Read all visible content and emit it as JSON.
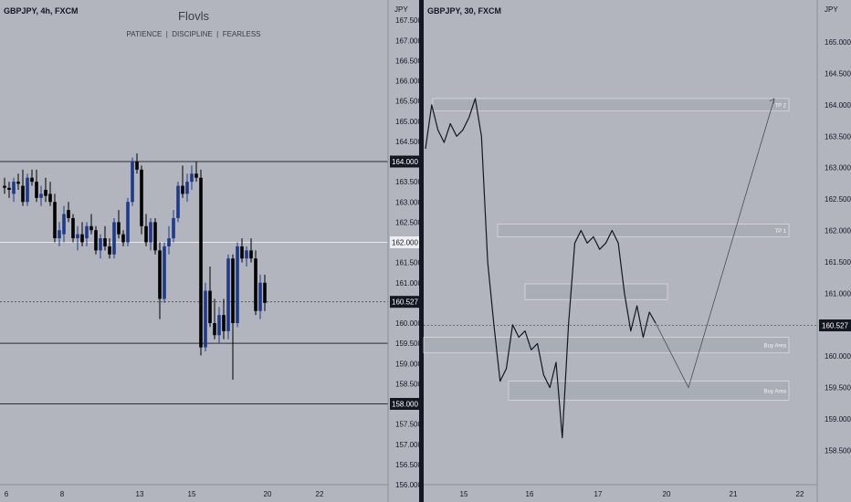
{
  "left_panel": {
    "symbol": "GBPJPY, 4h, FXCM",
    "brand": "Flovls",
    "tagline": "PATIENCE  |  DISCIPLINE  |  FEARLESS",
    "currency": "JPY",
    "price_badges": [
      "164.000",
      "162.000",
      "160.527",
      "158.000"
    ]
  },
  "right_panel": {
    "symbol": "GBPJPY, 30, FXCM",
    "currency": "JPY",
    "last_price": "160.527",
    "zone_labels": [
      "TP 2",
      "TP 1",
      "Buy Area",
      "Buy Area"
    ]
  },
  "colors": {
    "background": "#b2b5be",
    "bull_candle": "#1f3a8a",
    "bear_candle": "#000000",
    "separator": "#131722",
    "zone_fill": "#a3a6ae",
    "text": "#131722"
  },
  "chart_data": [
    {
      "type": "candlestick",
      "title": "GBPJPY, 4h, FXCM",
      "ylabel": "JPY",
      "ylim": [
        156.0,
        168.0
      ],
      "y_ticks": [
        "167.500",
        "167.000",
        "166.500",
        "166.000",
        "165.500",
        "165.000",
        "164.500",
        "164.000",
        "163.500",
        "163.000",
        "162.500",
        "162.000",
        "161.500",
        "161.000",
        "160.527",
        "160.000",
        "159.500",
        "159.000",
        "158.500",
        "158.000",
        "157.500",
        "157.000",
        "156.500",
        "156.000"
      ],
      "x_ticks": [
        "6",
        "8",
        "13",
        "15",
        "20",
        "22"
      ],
      "horizontal_levels": [
        164.0,
        162.0,
        160.527,
        159.5,
        158.0
      ],
      "candles": [
        {
          "o": 163.4,
          "h": 163.6,
          "l": 163.2,
          "c": 163.35
        },
        {
          "o": 163.35,
          "h": 163.5,
          "l": 163.1,
          "c": 163.3
        },
        {
          "o": 163.2,
          "h": 163.6,
          "l": 163.0,
          "c": 163.5
        },
        {
          "o": 163.5,
          "h": 163.7,
          "l": 163.3,
          "c": 163.45
        },
        {
          "o": 163.4,
          "h": 163.8,
          "l": 162.9,
          "c": 163.0
        },
        {
          "o": 163.0,
          "h": 163.7,
          "l": 162.9,
          "c": 163.6
        },
        {
          "o": 163.6,
          "h": 163.8,
          "l": 163.4,
          "c": 163.5
        },
        {
          "o": 163.5,
          "h": 163.8,
          "l": 163.0,
          "c": 163.1
        },
        {
          "o": 163.1,
          "h": 163.4,
          "l": 162.9,
          "c": 163.2
        },
        {
          "o": 163.3,
          "h": 163.6,
          "l": 163.0,
          "c": 163.15
        },
        {
          "o": 163.2,
          "h": 163.5,
          "l": 162.9,
          "c": 163.0
        },
        {
          "o": 163.0,
          "h": 163.2,
          "l": 162.0,
          "c": 162.1
        },
        {
          "o": 162.1,
          "h": 162.5,
          "l": 161.9,
          "c": 162.3
        },
        {
          "o": 162.2,
          "h": 162.9,
          "l": 162.0,
          "c": 162.7
        },
        {
          "o": 162.8,
          "h": 163.0,
          "l": 162.5,
          "c": 162.6
        },
        {
          "o": 162.6,
          "h": 162.7,
          "l": 162.0,
          "c": 162.1
        },
        {
          "o": 162.1,
          "h": 162.4,
          "l": 161.8,
          "c": 162.2
        },
        {
          "o": 162.2,
          "h": 162.5,
          "l": 161.9,
          "c": 162.0
        },
        {
          "o": 162.1,
          "h": 162.5,
          "l": 161.9,
          "c": 162.4
        },
        {
          "o": 162.4,
          "h": 162.7,
          "l": 162.2,
          "c": 162.3
        },
        {
          "o": 162.3,
          "h": 162.4,
          "l": 161.7,
          "c": 161.8
        },
        {
          "o": 161.8,
          "h": 162.2,
          "l": 161.6,
          "c": 162.1
        },
        {
          "o": 162.1,
          "h": 162.4,
          "l": 161.8,
          "c": 161.9
        },
        {
          "o": 161.9,
          "h": 162.1,
          "l": 161.6,
          "c": 161.7
        },
        {
          "o": 161.7,
          "h": 162.6,
          "l": 161.6,
          "c": 162.5
        },
        {
          "o": 162.5,
          "h": 162.8,
          "l": 162.1,
          "c": 162.2
        },
        {
          "o": 162.2,
          "h": 162.3,
          "l": 161.9,
          "c": 162.0
        },
        {
          "o": 162.0,
          "h": 163.1,
          "l": 161.9,
          "c": 163.0
        },
        {
          "o": 163.0,
          "h": 164.1,
          "l": 162.9,
          "c": 164.0
        },
        {
          "o": 164.0,
          "h": 164.2,
          "l": 163.7,
          "c": 163.8
        },
        {
          "o": 163.8,
          "h": 163.9,
          "l": 162.2,
          "c": 162.4
        },
        {
          "o": 162.4,
          "h": 162.7,
          "l": 161.9,
          "c": 162.0
        },
        {
          "o": 162.0,
          "h": 162.6,
          "l": 161.8,
          "c": 162.5
        },
        {
          "o": 162.5,
          "h": 162.6,
          "l": 161.7,
          "c": 161.8
        },
        {
          "o": 161.8,
          "h": 162.0,
          "l": 160.1,
          "c": 160.6
        },
        {
          "o": 160.6,
          "h": 162.0,
          "l": 160.5,
          "c": 161.9
        },
        {
          "o": 161.9,
          "h": 162.4,
          "l": 161.7,
          "c": 162.1
        },
        {
          "o": 162.1,
          "h": 162.8,
          "l": 162.0,
          "c": 162.6
        },
        {
          "o": 162.6,
          "h": 163.5,
          "l": 162.5,
          "c": 163.4
        },
        {
          "o": 163.4,
          "h": 163.9,
          "l": 163.1,
          "c": 163.2
        },
        {
          "o": 163.2,
          "h": 163.7,
          "l": 163.0,
          "c": 163.5
        },
        {
          "o": 163.5,
          "h": 163.9,
          "l": 163.3,
          "c": 163.7
        },
        {
          "o": 163.7,
          "h": 164.0,
          "l": 163.5,
          "c": 163.6
        },
        {
          "o": 163.6,
          "h": 163.8,
          "l": 159.2,
          "c": 159.4
        },
        {
          "o": 159.4,
          "h": 161.0,
          "l": 159.3,
          "c": 160.8
        },
        {
          "o": 160.8,
          "h": 161.4,
          "l": 159.9,
          "c": 160.0
        },
        {
          "o": 160.0,
          "h": 160.6,
          "l": 159.6,
          "c": 159.7
        },
        {
          "o": 159.7,
          "h": 160.4,
          "l": 159.5,
          "c": 160.2
        },
        {
          "o": 160.2,
          "h": 160.6,
          "l": 159.6,
          "c": 159.8
        },
        {
          "o": 159.8,
          "h": 161.7,
          "l": 159.6,
          "c": 161.6
        },
        {
          "o": 161.6,
          "h": 161.7,
          "l": 158.6,
          "c": 160.0
        },
        {
          "o": 160.0,
          "h": 162.0,
          "l": 159.9,
          "c": 161.9
        },
        {
          "o": 161.9,
          "h": 162.1,
          "l": 161.5,
          "c": 161.6
        },
        {
          "o": 161.6,
          "h": 161.9,
          "l": 161.4,
          "c": 161.8
        },
        {
          "o": 161.8,
          "h": 162.1,
          "l": 161.5,
          "c": 161.6
        },
        {
          "o": 161.6,
          "h": 161.8,
          "l": 160.2,
          "c": 160.3
        },
        {
          "o": 160.3,
          "h": 161.2,
          "l": 160.1,
          "c": 161.0
        },
        {
          "o": 161.0,
          "h": 161.2,
          "l": 160.3,
          "c": 160.5
        }
      ]
    },
    {
      "type": "line",
      "title": "GBPJPY, 30, FXCM",
      "ylabel": "JPY",
      "ylim": [
        158.0,
        165.5
      ],
      "y_ticks": [
        "165.000",
        "164.500",
        "164.000",
        "163.500",
        "163.000",
        "162.500",
        "162.000",
        "161.500",
        "161.000",
        "160.527",
        "160.000",
        "159.500",
        "159.000",
        "158.500"
      ],
      "x_ticks": [
        "15",
        "16",
        "17",
        "20",
        "21",
        "22"
      ],
      "zones": [
        {
          "label": "TP 2",
          "low": 163.9,
          "high": 164.1
        },
        {
          "label": "TP 1",
          "low": 161.9,
          "high": 162.1
        },
        {
          "label": "",
          "low": 160.9,
          "high": 161.15
        },
        {
          "label": "Buy Area",
          "low": 160.05,
          "high": 160.3
        },
        {
          "label": "Buy Area",
          "low": 159.3,
          "high": 159.6
        }
      ],
      "price_path": [
        163.3,
        164.0,
        163.6,
        163.4,
        163.7,
        163.5,
        163.6,
        163.8,
        164.1,
        163.5,
        161.5,
        160.5,
        159.6,
        159.8,
        160.5,
        160.3,
        160.4,
        160.1,
        160.2,
        159.7,
        159.5,
        159.9,
        158.7,
        160.5,
        161.8,
        162.0,
        161.8,
        161.9,
        161.7,
        161.8,
        162.0,
        161.8,
        161.0,
        160.4,
        160.8,
        160.3,
        160.7,
        160.527
      ],
      "projection": [
        160.527,
        159.5,
        164.1
      ]
    }
  ]
}
